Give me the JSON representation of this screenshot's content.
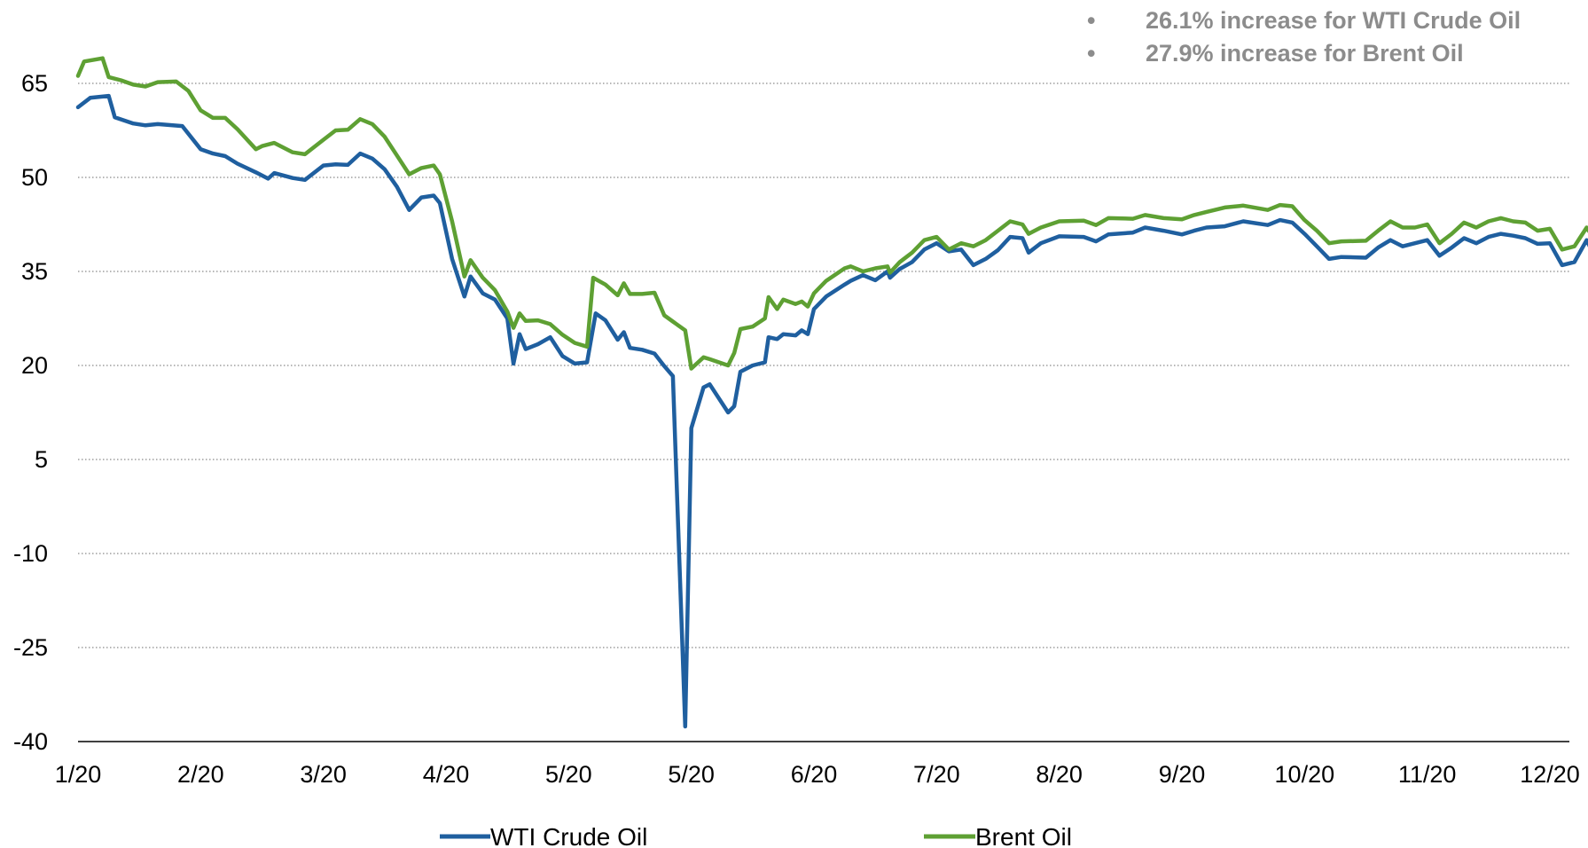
{
  "annotations": [
    "26.1% increase for WTI Crude Oil",
    "27.9% increase for Brent Oil"
  ],
  "chart_data": {
    "type": "line",
    "title": "",
    "xlabel": "",
    "ylabel": "",
    "ylim": [
      -40,
      65
    ],
    "y_ticks": [
      "65",
      "50",
      "35",
      "20",
      "5",
      "-10",
      "-25",
      "-40"
    ],
    "x_ticks": [
      "1/20",
      "2/20",
      "3/20",
      "4/20",
      "5/20",
      "5/20",
      "6/20",
      "7/20",
      "8/20",
      "9/20",
      "10/20",
      "11/20",
      "12/20"
    ],
    "grid": "horizontal-dotted",
    "legend_position": "bottom",
    "series": [
      {
        "name": "WTI Crude Oil",
        "color": "#1f5f9f",
        "points": [
          [
            0,
            61.2
          ],
          [
            0.1,
            62.7
          ],
          [
            0.25,
            63.0
          ],
          [
            0.3,
            59.6
          ],
          [
            0.45,
            58.6
          ],
          [
            0.55,
            58.3
          ],
          [
            0.65,
            58.5
          ],
          [
            0.85,
            58.2
          ],
          [
            1.0,
            54.5
          ],
          [
            1.1,
            53.8
          ],
          [
            1.2,
            53.4
          ],
          [
            1.3,
            52.2
          ],
          [
            1.45,
            50.8
          ],
          [
            1.55,
            49.8
          ],
          [
            1.6,
            50.7
          ],
          [
            1.75,
            49.9
          ],
          [
            1.85,
            49.6
          ],
          [
            2.0,
            51.9
          ],
          [
            2.1,
            52.1
          ],
          [
            2.2,
            52.0
          ],
          [
            2.3,
            53.8
          ],
          [
            2.4,
            53.0
          ],
          [
            2.5,
            51.3
          ],
          [
            2.6,
            48.5
          ],
          [
            2.7,
            44.8
          ],
          [
            2.8,
            46.8
          ],
          [
            2.9,
            47.1
          ],
          [
            2.95,
            45.9
          ],
          [
            3.05,
            37.0
          ],
          [
            3.15,
            31.0
          ],
          [
            3.2,
            34.2
          ],
          [
            3.3,
            31.5
          ],
          [
            3.4,
            30.5
          ],
          [
            3.5,
            27.5
          ],
          [
            3.55,
            20.3
          ],
          [
            3.6,
            25.0
          ],
          [
            3.65,
            22.6
          ],
          [
            3.75,
            23.4
          ],
          [
            3.85,
            24.5
          ],
          [
            3.95,
            21.5
          ],
          [
            4.05,
            20.3
          ],
          [
            4.15,
            20.5
          ],
          [
            4.22,
            28.3
          ],
          [
            4.3,
            27.2
          ],
          [
            4.4,
            24.1
          ],
          [
            4.45,
            25.3
          ],
          [
            4.5,
            22.8
          ],
          [
            4.6,
            22.5
          ],
          [
            4.7,
            21.9
          ],
          [
            4.78,
            19.9
          ],
          [
            4.85,
            18.3
          ],
          [
            4.95,
            -37.6
          ],
          [
            5.0,
            10.0
          ],
          [
            5.1,
            16.5
          ],
          [
            5.15,
            17.0
          ],
          [
            5.3,
            12.5
          ],
          [
            5.35,
            13.5
          ],
          [
            5.4,
            19.0
          ],
          [
            5.5,
            20.0
          ],
          [
            5.6,
            20.5
          ],
          [
            5.63,
            24.5
          ],
          [
            5.7,
            24.2
          ],
          [
            5.75,
            25.0
          ],
          [
            5.85,
            24.8
          ],
          [
            5.9,
            25.6
          ],
          [
            5.95,
            25.0
          ],
          [
            6.0,
            29.0
          ],
          [
            6.1,
            31.0
          ],
          [
            6.25,
            32.9
          ],
          [
            6.3,
            33.5
          ],
          [
            6.4,
            34.4
          ],
          [
            6.5,
            33.6
          ],
          [
            6.6,
            35.0
          ],
          [
            6.62,
            34.0
          ],
          [
            6.7,
            35.4
          ],
          [
            6.8,
            36.5
          ],
          [
            6.9,
            38.5
          ],
          [
            7.0,
            39.5
          ],
          [
            7.1,
            38.2
          ],
          [
            7.2,
            38.5
          ],
          [
            7.3,
            36.0
          ],
          [
            7.4,
            37.0
          ],
          [
            7.5,
            38.4
          ],
          [
            7.6,
            40.5
          ],
          [
            7.7,
            40.3
          ],
          [
            7.75,
            38.0
          ],
          [
            7.85,
            39.5
          ],
          [
            8.0,
            40.6
          ],
          [
            8.2,
            40.5
          ],
          [
            8.3,
            39.8
          ],
          [
            8.4,
            40.9
          ],
          [
            8.6,
            41.2
          ],
          [
            8.7,
            42.0
          ],
          [
            8.85,
            41.5
          ],
          [
            9.0,
            40.9
          ],
          [
            9.1,
            41.5
          ],
          [
            9.2,
            42.0
          ],
          [
            9.35,
            42.2
          ],
          [
            9.5,
            43.0
          ],
          [
            9.7,
            42.4
          ],
          [
            9.8,
            43.2
          ],
          [
            9.9,
            42.8
          ],
          [
            10.0,
            41.0
          ],
          [
            10.1,
            39.0
          ],
          [
            10.2,
            37.0
          ],
          [
            10.3,
            37.3
          ],
          [
            10.5,
            37.2
          ],
          [
            10.6,
            38.8
          ],
          [
            10.7,
            40.0
          ],
          [
            10.8,
            39.0
          ],
          [
            10.9,
            39.5
          ],
          [
            11.0,
            40.0
          ],
          [
            11.1,
            37.5
          ],
          [
            11.2,
            38.8
          ],
          [
            11.3,
            40.3
          ],
          [
            11.4,
            39.5
          ],
          [
            11.5,
            40.5
          ],
          [
            11.6,
            41.0
          ],
          [
            11.7,
            40.7
          ],
          [
            11.8,
            40.3
          ],
          [
            11.9,
            39.4
          ],
          [
            12.0,
            39.5
          ],
          [
            12.1,
            36.0
          ],
          [
            12.2,
            36.5
          ],
          [
            12.3,
            40.0
          ],
          [
            12.35,
            38.0
          ],
          [
            12.5,
            41.0
          ],
          [
            12.6,
            40.2
          ],
          [
            12.8,
            42.0
          ],
          [
            12.9,
            43.5
          ],
          [
            13.0,
            44.5
          ],
          [
            13.1,
            45.5
          ],
          [
            13.2,
            45.8
          ],
          [
            13.3,
            44.5
          ],
          [
            13.45,
            46.0
          ],
          [
            13.6,
            46.5
          ],
          [
            13.7,
            47.5
          ],
          [
            13.85,
            49.0
          ],
          [
            13.95,
            48.2
          ],
          [
            14.0,
            47.0
          ],
          [
            14.1,
            48.3
          ],
          [
            14.3,
            47.8
          ],
          [
            14.4,
            48.5
          ],
          [
            14.45,
            48.7
          ]
        ]
      },
      {
        "name": "Brent Oil",
        "color": "#5ea033",
        "points": [
          [
            0,
            66.2
          ],
          [
            0.05,
            68.5
          ],
          [
            0.2,
            69.0
          ],
          [
            0.25,
            66.0
          ],
          [
            0.35,
            65.5
          ],
          [
            0.45,
            64.8
          ],
          [
            0.55,
            64.5
          ],
          [
            0.65,
            65.2
          ],
          [
            0.8,
            65.3
          ],
          [
            0.9,
            63.8
          ],
          [
            1.0,
            60.7
          ],
          [
            1.1,
            59.5
          ],
          [
            1.2,
            59.5
          ],
          [
            1.3,
            57.7
          ],
          [
            1.45,
            54.5
          ],
          [
            1.5,
            55.0
          ],
          [
            1.6,
            55.5
          ],
          [
            1.75,
            54.0
          ],
          [
            1.85,
            53.7
          ],
          [
            2.0,
            56.0
          ],
          [
            2.1,
            57.5
          ],
          [
            2.2,
            57.6
          ],
          [
            2.3,
            59.3
          ],
          [
            2.4,
            58.5
          ],
          [
            2.5,
            56.5
          ],
          [
            2.6,
            53.5
          ],
          [
            2.7,
            50.5
          ],
          [
            2.8,
            51.5
          ],
          [
            2.9,
            51.9
          ],
          [
            2.95,
            50.5
          ],
          [
            3.05,
            43.0
          ],
          [
            3.15,
            34.2
          ],
          [
            3.2,
            36.8
          ],
          [
            3.3,
            34.0
          ],
          [
            3.4,
            32.0
          ],
          [
            3.5,
            28.6
          ],
          [
            3.55,
            26.0
          ],
          [
            3.6,
            28.3
          ],
          [
            3.65,
            27.1
          ],
          [
            3.75,
            27.2
          ],
          [
            3.85,
            26.6
          ],
          [
            3.95,
            24.9
          ],
          [
            4.05,
            23.6
          ],
          [
            4.15,
            23.0
          ],
          [
            4.2,
            34.0
          ],
          [
            4.3,
            32.9
          ],
          [
            4.4,
            31.2
          ],
          [
            4.45,
            33.1
          ],
          [
            4.5,
            31.4
          ],
          [
            4.6,
            31.4
          ],
          [
            4.7,
            31.6
          ],
          [
            4.78,
            28.0
          ],
          [
            4.85,
            27.0
          ],
          [
            4.95,
            25.6
          ],
          [
            5.0,
            19.5
          ],
          [
            5.1,
            21.3
          ],
          [
            5.15,
            21.0
          ],
          [
            5.3,
            20.0
          ],
          [
            5.35,
            22.0
          ],
          [
            5.4,
            25.8
          ],
          [
            5.5,
            26.2
          ],
          [
            5.6,
            27.5
          ],
          [
            5.63,
            30.9
          ],
          [
            5.7,
            29.0
          ],
          [
            5.75,
            30.5
          ],
          [
            5.85,
            29.8
          ],
          [
            5.9,
            30.2
          ],
          [
            5.95,
            29.4
          ],
          [
            6.0,
            31.5
          ],
          [
            6.1,
            33.5
          ],
          [
            6.25,
            35.5
          ],
          [
            6.3,
            35.8
          ],
          [
            6.4,
            35.0
          ],
          [
            6.5,
            35.5
          ],
          [
            6.6,
            35.8
          ],
          [
            6.62,
            34.8
          ],
          [
            6.7,
            36.5
          ],
          [
            6.8,
            38.0
          ],
          [
            6.9,
            40.0
          ],
          [
            7.0,
            40.5
          ],
          [
            7.1,
            38.5
          ],
          [
            7.2,
            39.5
          ],
          [
            7.3,
            39.0
          ],
          [
            7.4,
            40.0
          ],
          [
            7.5,
            41.5
          ],
          [
            7.6,
            43.0
          ],
          [
            7.7,
            42.5
          ],
          [
            7.75,
            41.0
          ],
          [
            7.85,
            42.0
          ],
          [
            8.0,
            43.0
          ],
          [
            8.2,
            43.1
          ],
          [
            8.3,
            42.4
          ],
          [
            8.4,
            43.5
          ],
          [
            8.6,
            43.4
          ],
          [
            8.7,
            44.0
          ],
          [
            8.85,
            43.5
          ],
          [
            9.0,
            43.3
          ],
          [
            9.1,
            44.0
          ],
          [
            9.2,
            44.5
          ],
          [
            9.35,
            45.2
          ],
          [
            9.5,
            45.5
          ],
          [
            9.7,
            44.8
          ],
          [
            9.8,
            45.6
          ],
          [
            9.9,
            45.4
          ],
          [
            10.0,
            43.2
          ],
          [
            10.1,
            41.5
          ],
          [
            10.2,
            39.5
          ],
          [
            10.3,
            39.8
          ],
          [
            10.5,
            39.9
          ],
          [
            10.6,
            41.5
          ],
          [
            10.7,
            43.0
          ],
          [
            10.8,
            42.0
          ],
          [
            10.9,
            42.0
          ],
          [
            11.0,
            42.5
          ],
          [
            11.1,
            39.5
          ],
          [
            11.2,
            41.0
          ],
          [
            11.3,
            42.8
          ],
          [
            11.4,
            42.0
          ],
          [
            11.5,
            43.0
          ],
          [
            11.6,
            43.5
          ],
          [
            11.7,
            43.0
          ],
          [
            11.8,
            42.8
          ],
          [
            11.9,
            41.5
          ],
          [
            12.0,
            41.8
          ],
          [
            12.1,
            38.5
          ],
          [
            12.2,
            39.0
          ],
          [
            12.3,
            42.0
          ],
          [
            12.35,
            40.5
          ],
          [
            12.5,
            43.5
          ],
          [
            12.6,
            43.0
          ],
          [
            12.8,
            44.5
          ],
          [
            12.9,
            46.0
          ],
          [
            13.0,
            47.0
          ],
          [
            13.1,
            48.2
          ],
          [
            13.2,
            48.0
          ],
          [
            13.3,
            47.5
          ],
          [
            13.45,
            49.0
          ],
          [
            13.6,
            49.5
          ],
          [
            13.7,
            50.0
          ],
          [
            13.85,
            52.3
          ],
          [
            13.95,
            51.5
          ],
          [
            14.0,
            50.3
          ],
          [
            14.1,
            51.3
          ],
          [
            14.3,
            51.0
          ],
          [
            14.4,
            51.5
          ],
          [
            14.45,
            52.0
          ]
        ]
      }
    ]
  }
}
